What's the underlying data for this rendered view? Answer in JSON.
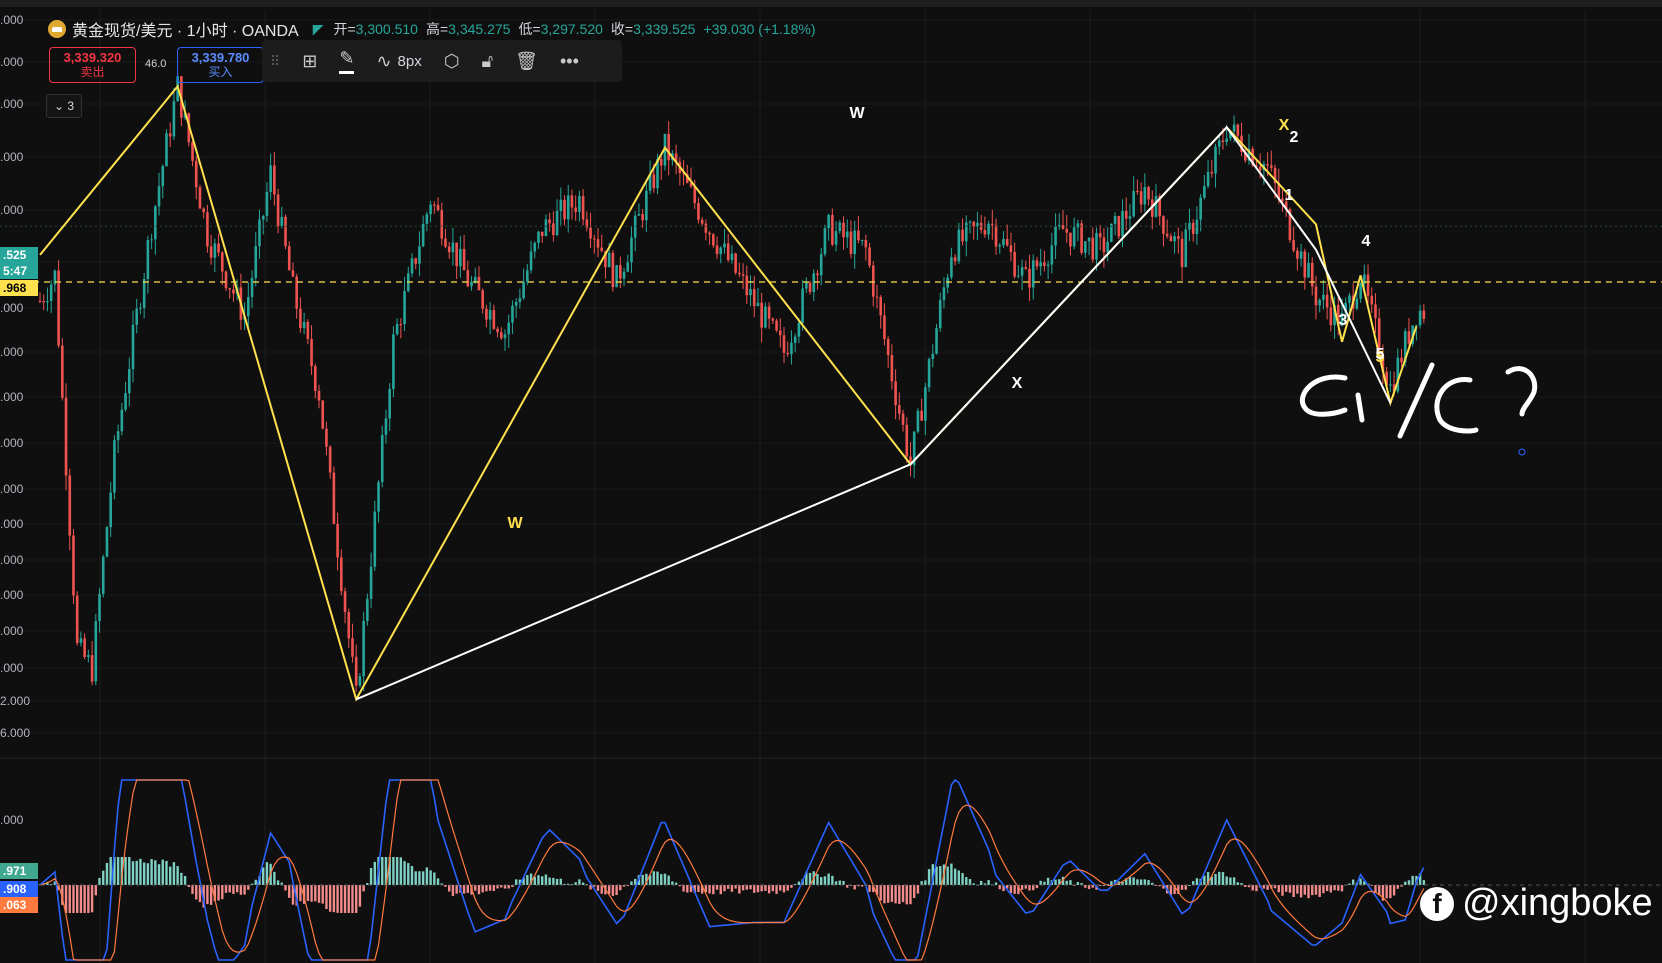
{
  "header": {
    "symbol": "黄金现货/美元 · 1小时 · OANDA",
    "open_label": "开=",
    "open": "3,300.510",
    "high_label": "高=",
    "high": "3,345.275",
    "low_label": "低=",
    "low": "3,297.520",
    "close_label": "收=",
    "close": "3,339.525",
    "change": "+39.030 (+1.18%)"
  },
  "trade": {
    "sell_price": "3,339.320",
    "sell_label": "卖出",
    "spread": "46.0",
    "buy_price": "3,339.780",
    "buy_label": "买入"
  },
  "toolbar": {
    "icons": [
      "drag-handle-icon",
      "template-icon",
      "pen-icon",
      "line-style-icon",
      "settings-icon",
      "lock-icon",
      "trash-icon",
      "more-icon"
    ],
    "width_label": "8px"
  },
  "collapse": {
    "label": "⌄ 3"
  },
  "price_axis": {
    "labels": [
      ".000",
      ".000",
      ".000",
      ".000",
      ".000",
      ".000",
      ".000",
      ".000",
      ".000",
      ".000",
      ".000",
      ".000",
      ".000",
      ".000",
      ".000",
      ".000",
      "2.000",
      "6.000"
    ],
    "tag_last": ".525",
    "tag_timer": "5:47",
    "tag_line": ".968"
  },
  "indicator_axis": {
    "labels": [
      ".000"
    ],
    "tag_1": ".971",
    "tag_2": ".908",
    "tag_3": ".063"
  },
  "annotations": {
    "wave_labels": [
      "W",
      "W",
      "X",
      "X",
      "2",
      "1",
      "3",
      "4",
      "5",
      "5"
    ],
    "handwritten_note": "c1/c?"
  },
  "watermark": {
    "text": "@xingboke"
  },
  "colors": {
    "up": "#26a69a",
    "down": "#ef5350",
    "yellow": "#ffe14d",
    "white": "#ffffff",
    "background": "#0f0f0f"
  },
  "chart_data": {
    "type": "line",
    "title": "黄金现货/美元 · 1小时 · OANDA",
    "xlabel": "",
    "ylabel": "",
    "grid": true,
    "series": [
      {
        "x": [
          "bar 0",
          "bar 37",
          "bar 85",
          "bar 168",
          "bar 234",
          "bar 319",
          "bar 343",
          "bar 350",
          "bar 355",
          "bar 363",
          "bar 370"
        ],
        "y": [
          3339,
          3372,
          3252,
          3360,
          3298,
          3364,
          3345,
          3322,
          3335,
          3310,
          3325
        ]
      },
      {
        "x": [
          "bar 85",
          "bar 234",
          "bar 319",
          "bar 343",
          "bar 363"
        ],
        "y": [
          3252,
          3298,
          3364,
          3340,
          3310
        ]
      }
    ],
    "last_price": 3339.525
  }
}
